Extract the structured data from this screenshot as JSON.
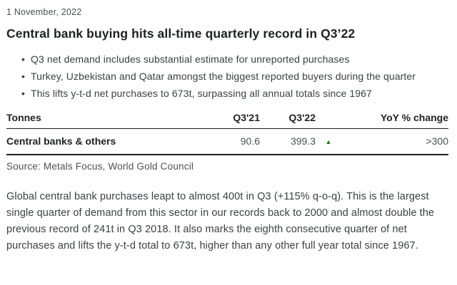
{
  "header": {
    "date": "1 November, 2022",
    "title": "Central bank buying hits all-time quarterly record in Q3’22"
  },
  "bullets": [
    "Q3 net demand includes substantial estimate for unreported purchases",
    "Turkey, Uzbekistan and Qatar amongst the biggest reported buyers during the quarter",
    "This lifts y-t-d net purchases to 673t, surpassing all annual totals since 1967"
  ],
  "table": {
    "columns": {
      "label": "Tonnes",
      "q3_21": "Q3'21",
      "q3_22": "Q3'22",
      "yoy": "YoY % change"
    },
    "rows": [
      {
        "label": "Central banks & others",
        "q3_21": "90.6",
        "q3_22": "399.3",
        "indicator": "up",
        "indicator_glyph": "▲",
        "indicator_color": "#0b8a00",
        "yoy": ">300"
      }
    ],
    "source": "Source: Metals Focus, World Gold Council"
  },
  "body": {
    "paragraph": "Global central bank  purchases leapt to almost 400t in Q3 (+115% q-o-q). This is the largest single quarter of demand from this sector in our records back to 2000 and almost double the previous record of 241t in Q3 2018. It also marks the eighth consecutive quarter of net purchases and lifts the y-t-d total to 673t, higher than any other full year total since 1967."
  },
  "colors": {
    "heading_text": "#1f2023",
    "body_text": "#3c4044",
    "muted_text": "#4c5055",
    "rule": "#1f2023",
    "up_indicator": "#0b8a00",
    "background": "#ffffff"
  }
}
